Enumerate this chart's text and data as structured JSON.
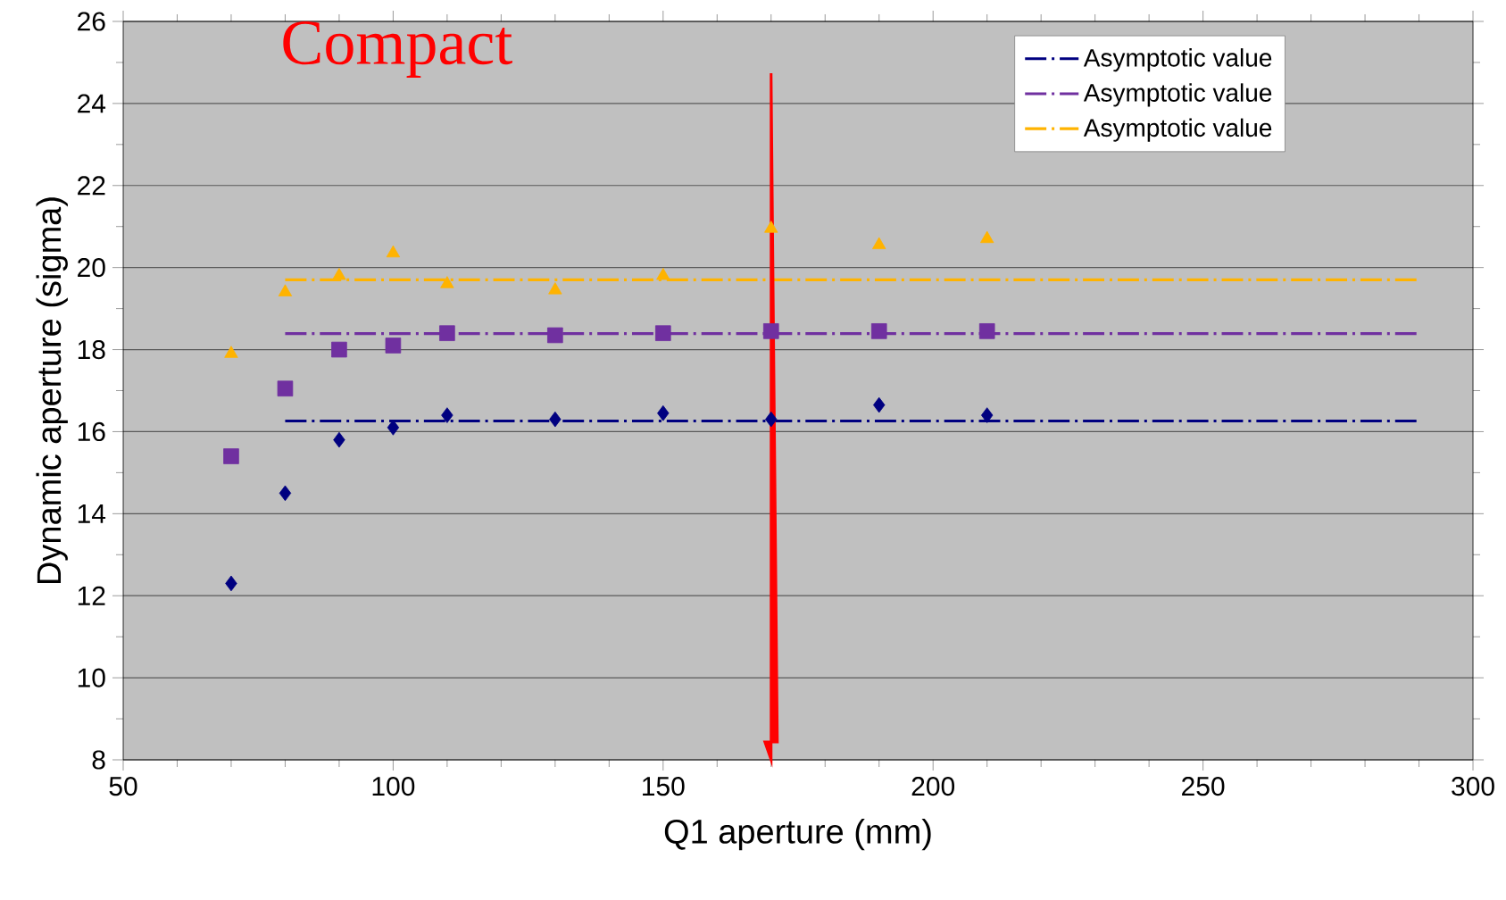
{
  "chart_data": {
    "type": "scatter",
    "xlabel": "Q1 aperture (mm)",
    "ylabel": "Dynamic aperture (sigma)",
    "annotations": [
      "Compact"
    ],
    "xlim": [
      50,
      300
    ],
    "ylim": [
      8,
      26
    ],
    "xticks": [
      50,
      100,
      150,
      200,
      250,
      300
    ],
    "yticks": [
      8,
      10,
      12,
      14,
      16,
      18,
      20,
      22,
      24,
      26
    ],
    "grid": "y",
    "legend": "top right",
    "series": [
      {
        "marker": "diamond",
        "color": "#000080",
        "x": [
          70,
          80,
          90,
          100,
          110,
          130,
          150,
          170,
          190,
          210
        ],
        "values": [
          12.3,
          14.5,
          15.8,
          16.1,
          16.4,
          16.3,
          16.45,
          16.3,
          16.65,
          16.4
        ]
      },
      {
        "marker": "square",
        "color": "#7030a0",
        "x": [
          70,
          80,
          90,
          100,
          110,
          130,
          150,
          170,
          190,
          210
        ],
        "values": [
          15.4,
          17.05,
          18.0,
          18.1,
          18.4,
          18.35,
          18.4,
          18.45,
          18.45,
          18.45
        ]
      },
      {
        "marker": "triangle",
        "color": "#ffb300",
        "x": [
          70,
          80,
          90,
          100,
          110,
          130,
          150,
          170,
          190,
          210
        ],
        "values": [
          17.9,
          19.4,
          19.8,
          20.35,
          19.6,
          19.45,
          19.8,
          20.95,
          20.55,
          20.7
        ]
      },
      {
        "type": "line",
        "name": "Asymptotic value",
        "line_style": "dashdot",
        "color": "#000080",
        "x": [
          80,
          290
        ],
        "values": [
          16.26,
          16.26
        ]
      },
      {
        "type": "line",
        "name": "Asymptotic value",
        "line_style": "dashdot",
        "color": "#7030a0",
        "x": [
          80,
          290
        ],
        "values": [
          18.39,
          18.39
        ]
      },
      {
        "type": "line",
        "name": "Asymptotic value",
        "line_style": "dashdot",
        "color": "#ffb300",
        "x": [
          80,
          290
        ],
        "values": [
          19.7,
          19.7
        ]
      }
    ],
    "ref_lines": [
      {
        "axis": "x",
        "value": 170,
        "color": "#ff0000"
      }
    ]
  }
}
